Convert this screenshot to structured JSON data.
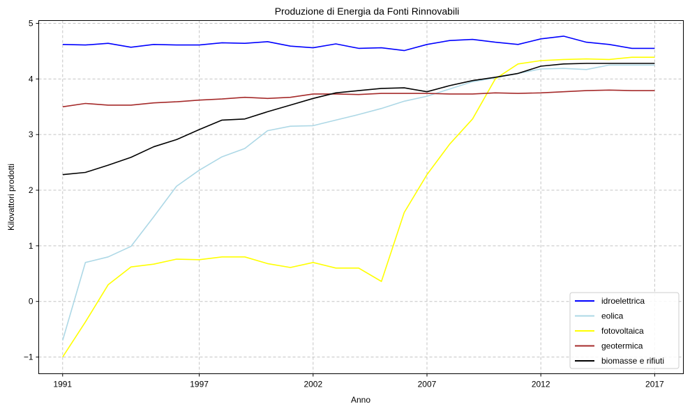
{
  "chart_data": {
    "type": "line",
    "title": "Produzione di Energia da Fonti Rinnovabili",
    "xlabel": "Anno",
    "ylabel": "Kilovattori prodotti",
    "xlim": [
      1989.95,
      2018.26
    ],
    "ylim": [
      -1.3,
      5.05
    ],
    "xticks": [
      1991,
      1997,
      2002,
      2007,
      2012,
      2017
    ],
    "xtick_labels": [
      "1991",
      "1997",
      "2002",
      "2007",
      "2012",
      "2017"
    ],
    "yticks": [
      -1,
      0,
      1,
      2,
      3,
      4,
      5
    ],
    "ytick_labels": [
      "−1",
      "0",
      "1",
      "2",
      "3",
      "4",
      "5"
    ],
    "grid": true,
    "legend_position": "bottom-right",
    "x": [
      1991,
      1992,
      1993,
      1994,
      1995,
      1996,
      1997,
      1998,
      1999,
      2000,
      2001,
      2002,
      2003,
      2004,
      2005,
      2006,
      2007,
      2008,
      2009,
      2010,
      2011,
      2012,
      2013,
      2014,
      2015,
      2016,
      2017
    ],
    "series": [
      {
        "name": "idroelettrica",
        "color": "#0000ff",
        "values": [
          4.62,
          4.61,
          4.64,
          4.57,
          4.62,
          4.61,
          4.61,
          4.65,
          4.64,
          4.67,
          4.59,
          4.56,
          4.63,
          4.55,
          4.56,
          4.51,
          4.62,
          4.69,
          4.71,
          4.66,
          4.62,
          4.72,
          4.77,
          4.66,
          4.62,
          4.55,
          4.55
        ]
      },
      {
        "name": "eolica",
        "color": "#add8e6",
        "values": [
          -0.7,
          0.7,
          0.8,
          0.99,
          1.52,
          2.07,
          2.36,
          2.6,
          2.75,
          3.07,
          3.15,
          3.16,
          3.26,
          3.36,
          3.47,
          3.6,
          3.69,
          3.82,
          3.95,
          4.02,
          4.1,
          4.18,
          4.19,
          4.17,
          4.25,
          4.25,
          4.25
        ]
      },
      {
        "name": "fotovoltaica",
        "color": "#ffff00",
        "values": [
          -1.0,
          -0.37,
          0.3,
          0.62,
          0.67,
          0.76,
          0.75,
          0.8,
          0.8,
          0.68,
          0.61,
          0.7,
          0.6,
          0.6,
          0.36,
          1.6,
          2.28,
          2.83,
          3.28,
          4.0,
          4.27,
          4.33,
          4.35,
          4.36,
          4.35,
          4.39,
          4.39
        ]
      },
      {
        "name": "geotermica",
        "color": "#a52a2a",
        "values": [
          3.5,
          3.56,
          3.53,
          3.53,
          3.57,
          3.59,
          3.62,
          3.64,
          3.67,
          3.65,
          3.67,
          3.73,
          3.73,
          3.72,
          3.74,
          3.74,
          3.74,
          3.73,
          3.73,
          3.75,
          3.74,
          3.75,
          3.77,
          3.79,
          3.8,
          3.79,
          3.79
        ]
      },
      {
        "name": "biomasse e rifiuti",
        "color": "#000000",
        "values": [
          2.28,
          2.32,
          2.45,
          2.59,
          2.78,
          2.91,
          3.09,
          3.26,
          3.28,
          3.41,
          3.53,
          3.65,
          3.75,
          3.79,
          3.83,
          3.84,
          3.77,
          3.88,
          3.97,
          4.03,
          4.1,
          4.23,
          4.27,
          4.28,
          4.28,
          4.28,
          4.28
        ]
      }
    ]
  }
}
